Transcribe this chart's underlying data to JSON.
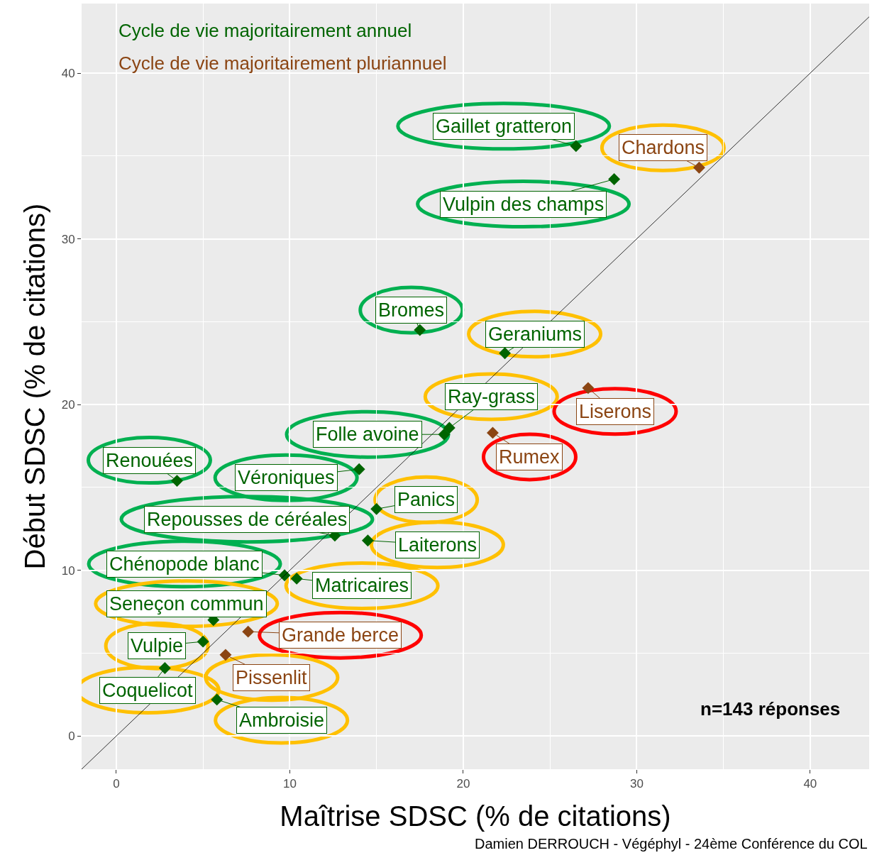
{
  "chart_data": {
    "type": "scatter",
    "xlabel": "Maîtrise SDSC (% de citations)",
    "ylabel": "Début SDSC (% de citations)",
    "xlim": [
      -2.0,
      43.4
    ],
    "ylim": [
      -2.0,
      44.2
    ],
    "xticks": [
      0,
      10,
      20,
      30,
      40
    ],
    "yticks": [
      0,
      10,
      20,
      30,
      40
    ],
    "grid": true,
    "legend": "top left",
    "series": [
      {
        "name": "Cycle de vie majoritairement annuel",
        "color": "#006400",
        "marker": "diamond",
        "x": [
          26.5,
          28.7,
          17.5,
          22.4,
          19.2,
          18.9,
          3.5,
          14.0,
          15.0,
          12.6,
          14.5,
          9.7,
          10.4,
          5.6,
          5.0,
          2.8,
          5.8
        ],
        "values": [
          35.6,
          33.6,
          24.5,
          23.1,
          18.6,
          18.2,
          15.4,
          16.1,
          13.7,
          12.1,
          11.8,
          9.7,
          9.5,
          7.0,
          5.7,
          4.1,
          2.2
        ]
      },
      {
        "name": "Cycle de vie majoritairement pluriannuel",
        "color": "#8b4513",
        "marker": "diamond",
        "x": [
          33.6,
          27.2,
          21.7,
          7.6,
          6.3
        ],
        "values": [
          34.3,
          21.0,
          18.3,
          6.3,
          4.9
        ]
      },
      {
        "type": "line",
        "color": "#000000",
        "x": [
          -2.0,
          43.4
        ],
        "values": [
          -2.0,
          43.4
        ]
      }
    ],
    "annotations": [
      {
        "text": "Gaillet gratteron",
        "x": 26.5,
        "y": 35.6
      },
      {
        "text": "Vulpin des champs",
        "x": 28.7,
        "y": 33.6
      },
      {
        "text": "Bromes",
        "x": 17.5,
        "y": 24.5
      },
      {
        "text": "Geraniums",
        "x": 22.4,
        "y": 23.1
      },
      {
        "text": "Ray-grass",
        "x": 19.2,
        "y": 18.6
      },
      {
        "text": "Folle avoine",
        "x": 18.9,
        "y": 18.2
      },
      {
        "text": "Renouées",
        "x": 3.5,
        "y": 15.4
      },
      {
        "text": "Véroniques",
        "x": 14.0,
        "y": 16.1
      },
      {
        "text": "Panics",
        "x": 15.0,
        "y": 13.7
      },
      {
        "text": "Repousses de céréales",
        "x": 12.6,
        "y": 12.1
      },
      {
        "text": "Laiterons",
        "x": 14.5,
        "y": 11.8
      },
      {
        "text": "Chénopode blanc",
        "x": 9.7,
        "y": 9.7
      },
      {
        "text": "Matricaires",
        "x": 10.4,
        "y": 9.5
      },
      {
        "text": "Seneçon commun",
        "x": 5.6,
        "y": 7.0
      },
      {
        "text": "Vulpie",
        "x": 5.0,
        "y": 5.7
      },
      {
        "text": "Coquelicot",
        "x": 2.8,
        "y": 4.1
      },
      {
        "text": "Ambroisie",
        "x": 5.8,
        "y": 2.2
      },
      {
        "text": "Chardons",
        "x": 33.6,
        "y": 34.3
      },
      {
        "text": "Liserons",
        "x": 27.2,
        "y": 21.0
      },
      {
        "text": "Rumex",
        "x": 21.7,
        "y": 18.3
      },
      {
        "text": "Grande berce",
        "x": 7.6,
        "y": 6.3
      },
      {
        "text": "Pissenlit",
        "x": 6.3,
        "y": 4.9
      },
      "n=143 réponses",
      "Damien DERROUCH - Végéphyl - 24ème Conférence du COL"
    ]
  }
}
